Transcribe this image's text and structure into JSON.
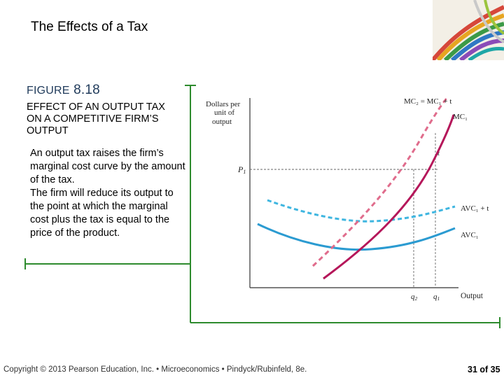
{
  "slide": {
    "title": "The Effects of a Tax",
    "figure_word": "FIGURE",
    "figure_number": "8.18",
    "heading_line1": "EFFECT OF AN OUTPUT TAX",
    "heading_line2": "ON A COMPETITIVE FIRM’S",
    "heading_line3": "OUTPUT",
    "paragraph1": "An output tax raises the firm’s marginal cost curve by the amount of the tax.",
    "paragraph2": "The firm will reduce its output to the point at which the marginal cost plus the tax is equal to the price of the product.",
    "footer": "Copyright © 2013 Pearson Education, Inc. • Microeconomics • Pindyck/Rubinfeld, 8e.",
    "page_number": "31 of 35"
  },
  "diagram": {
    "y_axis_label_line1": "Dollars per",
    "y_axis_label_line2": "unit of",
    "y_axis_label_line3": "output",
    "x_axis_label": "Output",
    "price_label": "P",
    "price_subscript": "1",
    "tax_label": "t",
    "curves": {
      "mc2_label": "MC₂ = MC₁ + t",
      "mc1_label": "MC₁",
      "avc2_label": "AVC₁ + t",
      "avc1_label": "AVC₁"
    },
    "q2_label": "q",
    "q2_subscript": "2",
    "q1_label": "q",
    "q1_subscript": "1",
    "colors": {
      "mc": "#b5175a",
      "mc_tax": "#e06c8c",
      "avc": "#2b9bd1",
      "avc_tax": "#3fb6e0",
      "frame": "#2e8b2e"
    }
  }
}
